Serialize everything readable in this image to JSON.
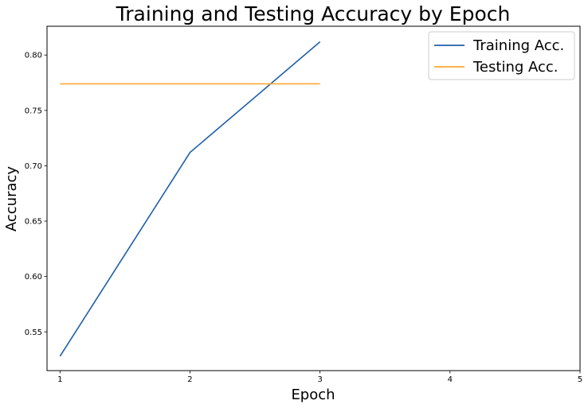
{
  "chart_data": {
    "type": "line",
    "title": "Training and Testing Accuracy by Epoch",
    "xlabel": "Epoch",
    "ylabel": "Accuracy",
    "x_ticks": [
      "1",
      "2",
      "3",
      "4",
      "5"
    ],
    "y_ticks": [
      "0.55",
      "0.60",
      "0.65",
      "0.70",
      "0.75",
      "0.80"
    ],
    "xlim": [
      0.9,
      5.0
    ],
    "ylim": [
      0.515,
      0.826
    ],
    "grid": false,
    "legend_position": "upper-right",
    "series": [
      {
        "name": "Training Acc.",
        "color": "#1f5fa8",
        "x": [
          1,
          2,
          3
        ],
        "y": [
          0.528,
          0.712,
          0.812
        ]
      },
      {
        "name": "Testing Acc.",
        "color": "#ffa833",
        "x": [
          1,
          2,
          3
        ],
        "y": [
          0.774,
          0.774,
          0.774
        ]
      }
    ]
  }
}
